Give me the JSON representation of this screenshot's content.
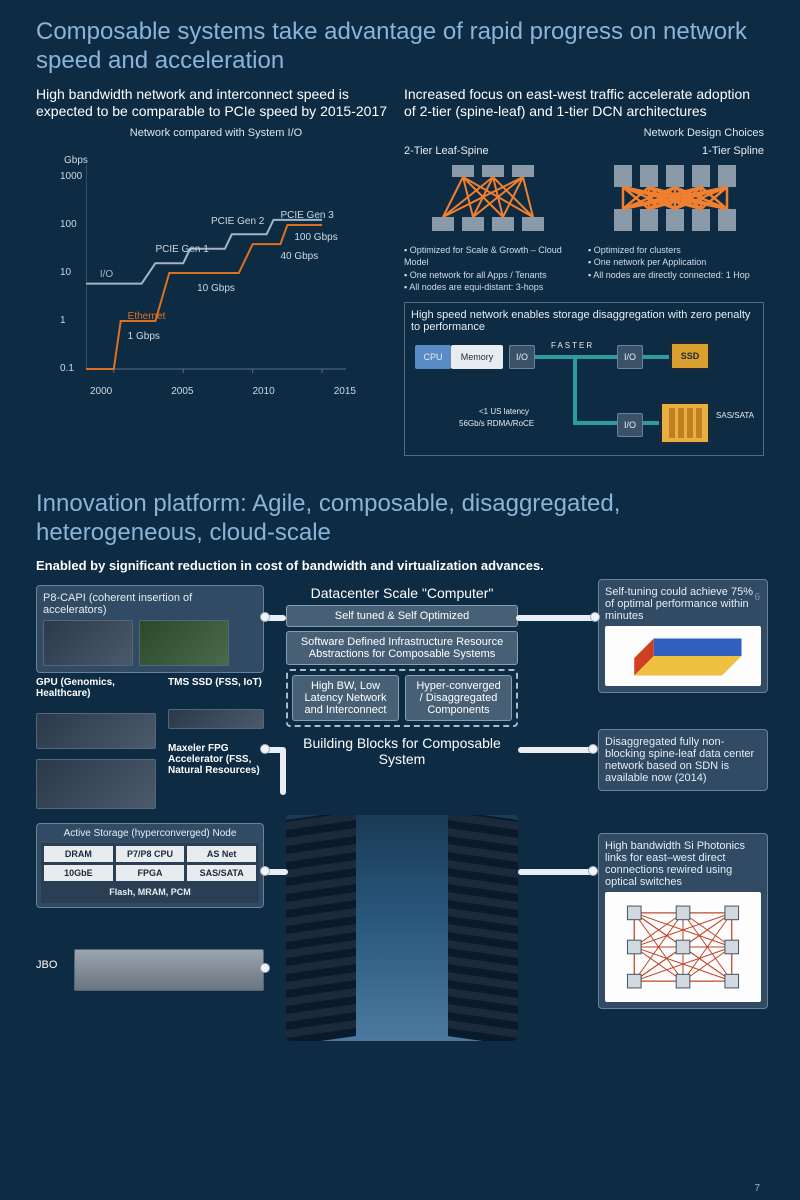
{
  "colors": {
    "bg": "#0d2b42",
    "title": "#8ab4d8",
    "text": "#ffffff",
    "muted": "#cdd9e4",
    "ethernet": "#e07020",
    "io": "#a5b5c5",
    "link": "#f08030",
    "teal": "#2d9ba0",
    "card_bg": "rgba(90,115,140,0.45)"
  },
  "top": {
    "title": "Composable systems take advantage of rapid progress on network speed and acceleration",
    "left": {
      "heading": "High bandwidth network and interconnect speed is expected to be comparable to PCIe speed by 2015-2017",
      "sub": "Network compared with System I/O",
      "chart": {
        "type": "line-log",
        "y_unit": "Gbps",
        "y_ticks": [
          0.1,
          1,
          10,
          100,
          1000
        ],
        "x_ticks": [
          2000,
          2005,
          2010,
          2015
        ],
        "xlim": [
          1998,
          2016
        ],
        "ylim_log10": [
          -1,
          3
        ],
        "series": [
          {
            "name": "Ethernet",
            "color": "#e07020",
            "width": 2,
            "points": [
              [
                1998,
                0.1
              ],
              [
                2000,
                0.1
              ],
              [
                2000.5,
                1
              ],
              [
                2003,
                1
              ],
              [
                2004,
                10
              ],
              [
                2009,
                10
              ],
              [
                2010,
                40
              ],
              [
                2012,
                40
              ],
              [
                2012.5,
                100
              ],
              [
                2015,
                100
              ]
            ],
            "labels": [
              {
                "text": "1 Gbps",
                "x": 2001,
                "y": 0.6
              },
              {
                "text": "10 Gbps",
                "x": 2006,
                "y": 6
              },
              {
                "text": "40 Gbps",
                "x": 2012,
                "y": 28
              },
              {
                "text": "100 Gbps",
                "x": 2013,
                "y": 70
              }
            ],
            "title_label": "Ethernet"
          },
          {
            "name": "I/O",
            "color": "#a5b5c5",
            "width": 2,
            "points": [
              [
                1998,
                6
              ],
              [
                2002,
                6
              ],
              [
                2003,
                16
              ],
              [
                2005,
                16
              ],
              [
                2005.5,
                32
              ],
              [
                2008,
                32
              ],
              [
                2008.5,
                64
              ],
              [
                2011,
                64
              ],
              [
                2011.5,
                128
              ],
              [
                2015,
                128
              ]
            ],
            "labels": [
              {
                "text": "PCIE Gen 1",
                "x": 2003,
                "y": 40
              },
              {
                "text": "PCIE Gen 2",
                "x": 2007,
                "y": 150
              },
              {
                "text": "PCIE Gen 3",
                "x": 2012,
                "y": 200
              }
            ],
            "title_label": "I/O"
          }
        ]
      }
    },
    "right": {
      "heading": "Increased focus on east-west traffic accelerate adoption of 2-tier (spine-leaf) and 1-tier DCN architectures",
      "sub": "Network Design Choices",
      "cols": [
        {
          "title": "2-Tier Leaf-Spine",
          "bullets": [
            "Optimized for Scale & Growth – Cloud Model",
            "One network for all Apps / Tenants",
            "All nodes are equi-distant: 3-hops"
          ]
        },
        {
          "title": "1-Tier Spline",
          "bullets": [
            "Optimized for clusters",
            "One network per Application",
            "All nodes are directly connected: 1 Hop"
          ]
        }
      ],
      "storage": {
        "title": "High speed network enables storage disaggregation with zero penalty to performance",
        "nodes": {
          "cpu": "CPU",
          "mem": "Memory",
          "io": "I/O",
          "faster": "FASTER",
          "ssd": "SSD",
          "sas": "SAS/SATA",
          "lat": "<1 US latency",
          "rdma": "56Gb/s RDMA/RoCE"
        }
      }
    },
    "page": "6"
  },
  "bottom": {
    "title": "Innovation platform: Agile, composable, disaggregated, heterogeneous, cloud-scale",
    "subtitle": "Enabled by significant reduction in cost of bandwidth and virtualization advances.",
    "left": {
      "capi": "P8-CAPI (coherent insertion of accelerators)",
      "gpu": "GPU (Genomics, Healthcare)",
      "tms": "TMS SSD (FSS, IoT)",
      "maxeler": "Maxeler FPG Accelerator (FSS, Natural Resources)",
      "active": "Active Storage (hyperconverged) Node",
      "hw": [
        "DRAM",
        "P7/P8 CPU",
        "AS Net",
        "10GbE",
        "FPGA",
        "SAS/SATA"
      ],
      "flash": "Flash, MRAM, PCM",
      "jbo": "JBO"
    },
    "center": {
      "dc_title": "Datacenter Scale \"Computer\"",
      "self": "Self tuned & Self Optimized",
      "sdi": "Software Defined Infrastructure Resource Abstractions for Composable Systems",
      "net": "High BW, Low Latency Network and Interconnect",
      "hc": "Hyper-converged / Disaggregated Components",
      "blocks": "Building Blocks for Composable System"
    },
    "right": {
      "r1": "Self-tuning could achieve 75% of optimal performance within minutes",
      "r2": "Disaggregated fully non-blocking spine-leaf data center network based on SDN is available now (2014)",
      "r3": "High bandwidth Si Photonics links for east–west direct connections rewired using optical switches"
    },
    "page": "7"
  }
}
